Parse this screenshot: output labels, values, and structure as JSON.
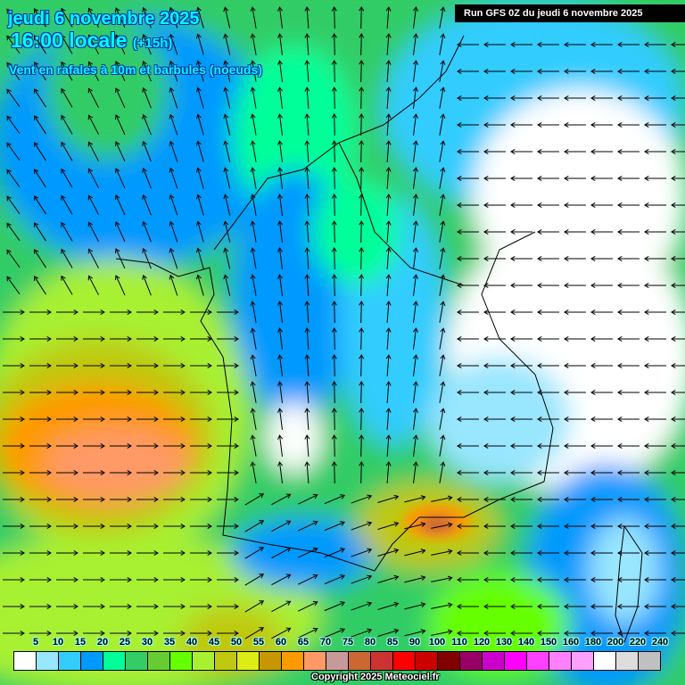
{
  "header": {
    "date": "jeudi 6 novembre 2025",
    "time": "16:00 locale",
    "offset": "(+15h)",
    "parameter": "Vent en rafales à 10m et barbules (noeuds)"
  },
  "run_label": "Run GFS 0Z du jeudi 6 novembre 2025",
  "legend": {
    "labels": [
      "5",
      "10",
      "15",
      "20",
      "25",
      "30",
      "35",
      "40",
      "45",
      "50",
      "55",
      "60",
      "65",
      "70",
      "75",
      "80",
      "85",
      "90",
      "100",
      "110",
      "120",
      "130",
      "140",
      "150",
      "160",
      "180",
      "200",
      "220",
      "240"
    ],
    "colors": [
      "#ffffff",
      "#99e6ff",
      "#33ccff",
      "#0099ff",
      "#00ff99",
      "#33cc66",
      "#66cc33",
      "#66ff00",
      "#a8f030",
      "#c0c810",
      "#dcec14",
      "#c89600",
      "#ff9900",
      "#ff9966",
      "#c89999",
      "#cc6633",
      "#cc3333",
      "#ff0000",
      "#cc0000",
      "#800000",
      "#990066",
      "#cc00cc",
      "#ff00ff",
      "#ff40ff",
      "#ff80ff",
      "#ffa0ff",
      "#ffffff",
      "#dddddd",
      "#c0c0c0"
    ]
  },
  "copyright": "Copyright 2025 Meteociel.fr"
}
